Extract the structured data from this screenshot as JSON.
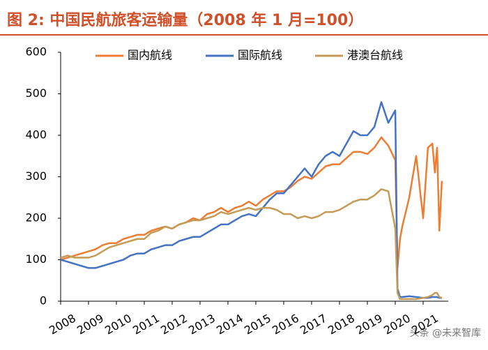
{
  "chart_data": {
    "type": "line",
    "title": "图 2:  中国民航旅客运输量（2008 年 1 月=100）",
    "watermark": "头条 @未来智库",
    "x": [
      2008,
      2008.25,
      2008.5,
      2008.75,
      2009,
      2009.25,
      2009.5,
      2009.75,
      2010,
      2010.25,
      2010.5,
      2010.75,
      2011,
      2011.25,
      2011.5,
      2011.75,
      2012,
      2012.25,
      2012.5,
      2012.75,
      2013,
      2013.25,
      2013.5,
      2013.75,
      2014,
      2014.25,
      2014.5,
      2014.75,
      2015,
      2015.25,
      2015.5,
      2015.75,
      2016,
      2016.25,
      2016.5,
      2016.75,
      2017,
      2017.25,
      2017.5,
      2017.75,
      2018,
      2018.25,
      2018.5,
      2018.75,
      2019,
      2019.25,
      2019.5,
      2019.75,
      2020,
      2020.08,
      2020.17,
      2020.25,
      2020.5,
      2020.75,
      2021,
      2021.17,
      2021.33,
      2021.42,
      2021.5,
      2021.58,
      2021.67
    ],
    "series": [
      {
        "name": "国内航线",
        "color": "#ed7d31",
        "values": [
          100,
          105,
          110,
          115,
          120,
          125,
          135,
          140,
          140,
          150,
          155,
          160,
          160,
          170,
          175,
          180,
          175,
          185,
          190,
          200,
          195,
          210,
          215,
          225,
          215,
          225,
          230,
          240,
          230,
          245,
          255,
          265,
          265,
          275,
          290,
          300,
          295,
          310,
          325,
          330,
          330,
          345,
          360,
          360,
          355,
          370,
          395,
          375,
          340,
          80,
          150,
          180,
          250,
          350,
          200,
          370,
          380,
          310,
          370,
          170,
          290
        ]
      },
      {
        "name": "国际航线",
        "color": "#4472c4",
        "values": [
          100,
          95,
          90,
          85,
          80,
          80,
          85,
          90,
          95,
          100,
          110,
          115,
          115,
          125,
          130,
          135,
          135,
          145,
          150,
          155,
          155,
          165,
          175,
          185,
          185,
          195,
          205,
          210,
          205,
          225,
          245,
          260,
          260,
          280,
          300,
          320,
          300,
          330,
          350,
          360,
          350,
          380,
          410,
          400,
          400,
          420,
          480,
          430,
          460,
          30,
          10,
          10,
          12,
          10,
          8,
          8,
          10,
          10,
          10,
          8,
          8
        ]
      },
      {
        "name": "港澳台航线",
        "color": "#c49a55",
        "values": [
          105,
          110,
          105,
          105,
          105,
          110,
          120,
          130,
          135,
          140,
          145,
          150,
          150,
          165,
          170,
          180,
          175,
          185,
          190,
          195,
          195,
          200,
          205,
          215,
          210,
          215,
          220,
          225,
          220,
          225,
          225,
          220,
          210,
          210,
          200,
          205,
          200,
          205,
          215,
          215,
          220,
          230,
          240,
          245,
          245,
          255,
          270,
          265,
          175,
          20,
          5,
          5,
          5,
          5,
          8,
          10,
          15,
          20,
          20,
          10,
          8
        ]
      }
    ],
    "xlim": [
      2008,
      2021.9
    ],
    "xticks": [
      2008,
      2009,
      2010,
      2011,
      2012,
      2013,
      2014,
      2015,
      2016,
      2017,
      2018,
      2019,
      2020,
      2021
    ],
    "ylim": [
      0,
      600
    ],
    "yticks": [
      0,
      100,
      200,
      300,
      400,
      500,
      600
    ],
    "legend": "top"
  }
}
